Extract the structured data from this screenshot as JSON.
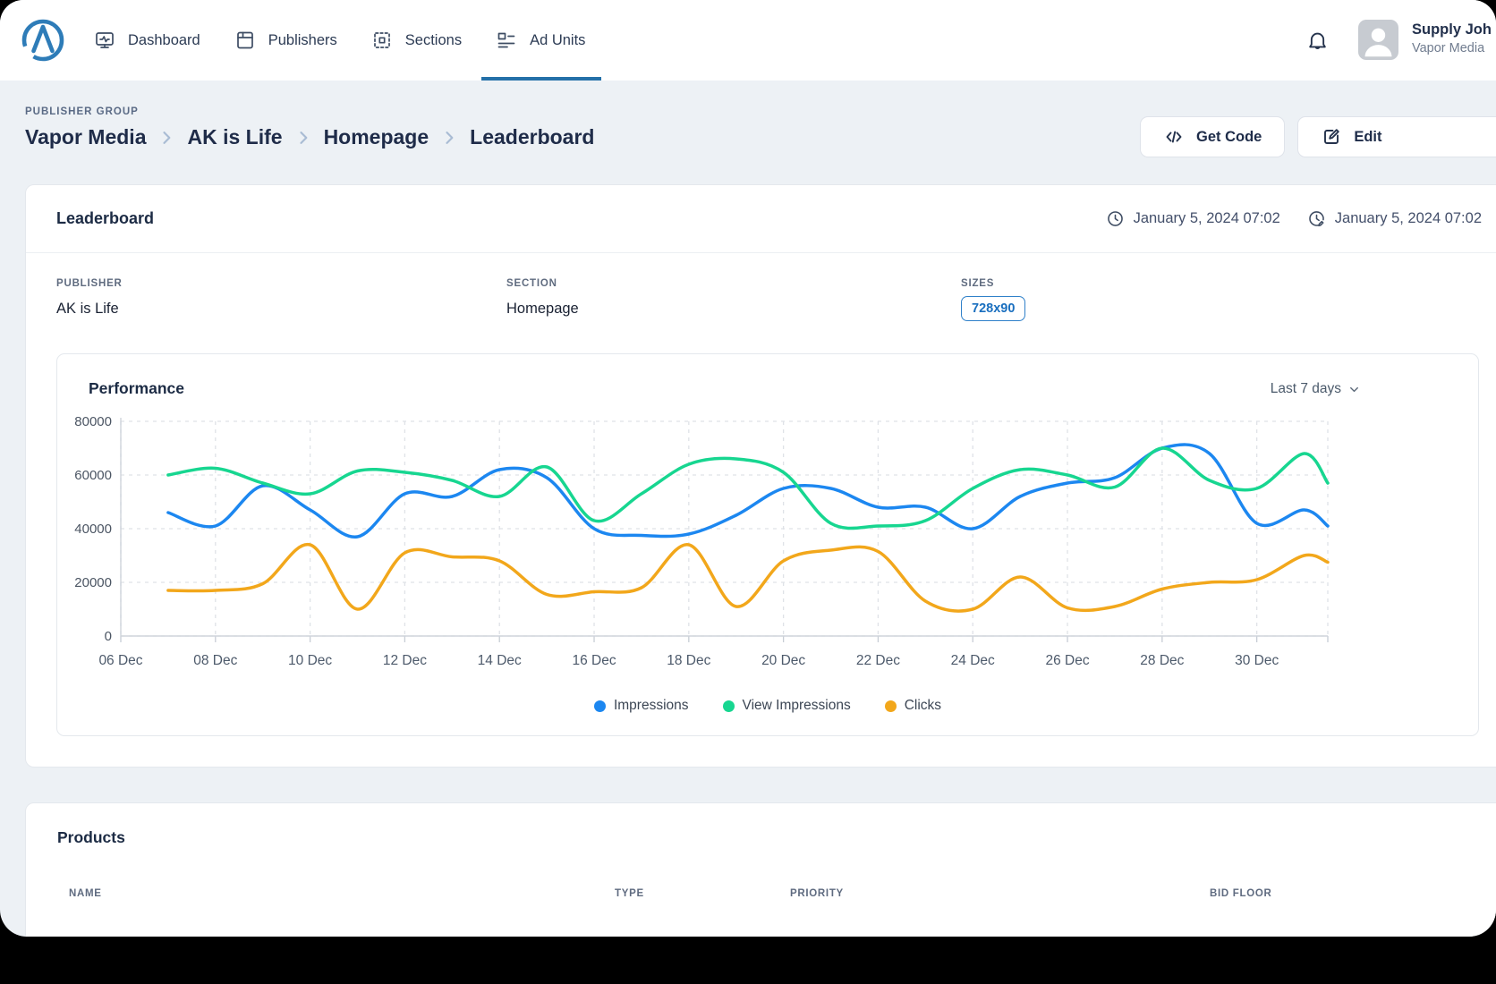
{
  "header": {
    "nav": [
      {
        "id": "dashboard",
        "label": "Dashboard",
        "active": false
      },
      {
        "id": "publishers",
        "label": "Publishers",
        "active": false
      },
      {
        "id": "sections",
        "label": "Sections",
        "active": false
      },
      {
        "id": "ad-units",
        "label": "Ad Units",
        "active": true
      }
    ],
    "user": {
      "name": "Supply Joh",
      "org": "Vapor Media"
    }
  },
  "breadcrumb": {
    "eyebrow": "PUBLISHER GROUP",
    "items": [
      "Vapor Media",
      "AK is Life",
      "Homepage",
      "Leaderboard"
    ]
  },
  "actions": {
    "get_code": "Get Code",
    "edit": "Edit"
  },
  "unit_card": {
    "title": "Leaderboard",
    "created_at": "January 5, 2024 07:02",
    "updated_at": "January 5, 2024 07:02",
    "publisher_label": "PUBLISHER",
    "publisher_value": "AK is Life",
    "section_label": "SECTION",
    "section_value": "Homepage",
    "sizes_label": "SIZES",
    "size_badge": "728x90"
  },
  "performance": {
    "title": "Performance",
    "range": "Last 7 days"
  },
  "chart_data": {
    "type": "line",
    "title": "Performance",
    "xlabel": "",
    "ylabel": "",
    "ylim": [
      0,
      80000
    ],
    "y_ticks": [
      0,
      20000,
      40000,
      60000,
      80000
    ],
    "x_range": [
      6,
      31.5
    ],
    "x_ticks": [
      {
        "day": 6,
        "label": "06 Dec"
      },
      {
        "day": 8,
        "label": "08 Dec"
      },
      {
        "day": 10,
        "label": "10 Dec"
      },
      {
        "day": 12,
        "label": "12 Dec"
      },
      {
        "day": 14,
        "label": "14 Dec"
      },
      {
        "day": 16,
        "label": "16 Dec"
      },
      {
        "day": 18,
        "label": "18 Dec"
      },
      {
        "day": 20,
        "label": "20 Dec"
      },
      {
        "day": 22,
        "label": "22 Dec"
      },
      {
        "day": 24,
        "label": "24 Dec"
      },
      {
        "day": 26,
        "label": "26 Dec"
      },
      {
        "day": 28,
        "label": "28 Dec"
      },
      {
        "day": 30,
        "label": "30 Dec"
      },
      {
        "day": 31.5,
        "label": ""
      }
    ],
    "x_days": [
      7,
      8,
      9,
      10,
      11,
      12,
      13,
      14,
      15,
      16,
      17,
      18,
      19,
      20,
      21,
      22,
      23,
      24,
      25,
      26,
      27,
      28,
      29,
      30,
      31,
      31.5
    ],
    "grid": "dashed",
    "legend_position": "bottom",
    "series": [
      {
        "name": "Impressions",
        "color": "#1c87f0",
        "values": [
          46000,
          41000,
          56000,
          47000,
          37000,
          53000,
          52000,
          62000,
          59000,
          40000,
          37500,
          38000,
          45000,
          55000,
          55000,
          48000,
          48000,
          40000,
          52000,
          57000,
          59000,
          70000,
          68000,
          42000,
          47000,
          41000
        ]
      },
      {
        "name": "View Impressions",
        "color": "#17d690",
        "values": [
          60000,
          62500,
          57000,
          53000,
          61500,
          61000,
          58000,
          52000,
          63000,
          43000,
          53000,
          64000,
          66000,
          61000,
          42000,
          41000,
          43000,
          55000,
          62000,
          60000,
          55500,
          70000,
          58000,
          55000,
          68000,
          57000
        ]
      },
      {
        "name": "Clicks",
        "color": "#f2a71b",
        "values": [
          17000,
          17000,
          19500,
          34000,
          10000,
          31000,
          29500,
          28000,
          15500,
          16500,
          18000,
          34000,
          11000,
          28000,
          32000,
          31500,
          13000,
          10000,
          22000,
          10500,
          11000,
          17500,
          20000,
          21000,
          30000,
          27500
        ]
      }
    ]
  },
  "products": {
    "title": "Products",
    "columns": [
      "NAME",
      "TYPE",
      "PRIORITY",
      "BID FLOOR"
    ]
  }
}
